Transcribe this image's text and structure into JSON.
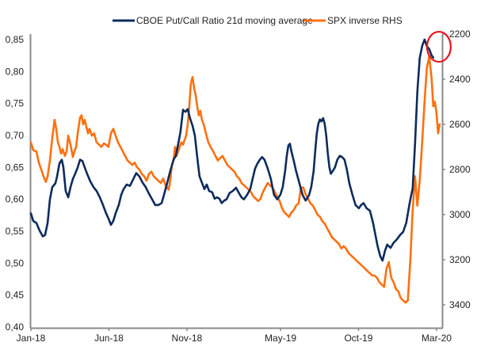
{
  "chart_data": {
    "type": "line",
    "title": "",
    "xlabel": "",
    "ylabel": "",
    "ylabel_right": "",
    "x_tick_labels": [
      "Jan-18",
      "Jun-18",
      "Nov-18",
      "May-19",
      "Oct-19",
      "Mar-20"
    ],
    "x_tick_months": [
      0,
      5,
      10,
      16,
      21,
      26
    ],
    "x_range_months": [
      0,
      27
    ],
    "y_left": {
      "ticks": [
        "0,85",
        "0,80",
        "0,75",
        "0,70",
        "0,65",
        "0,60",
        "0,55",
        "0,50",
        "0,45",
        "0,40"
      ],
      "tick_values": [
        0.85,
        0.8,
        0.75,
        0.7,
        0.65,
        0.6,
        0.55,
        0.5,
        0.45,
        0.4
      ],
      "range": [
        0.4,
        0.85
      ]
    },
    "y_right": {
      "ticks": [
        "2200",
        "2400",
        "2600",
        "2800",
        "3000",
        "3200",
        "3400"
      ],
      "tick_values": [
        2200,
        2400,
        2600,
        2800,
        3000,
        3200,
        3400
      ],
      "range": [
        2200,
        3500
      ],
      "inverted": true
    },
    "grid": false,
    "legend_position": "top",
    "series": [
      {
        "name": "CBOE Put/Call Ratio 21d moving average",
        "axis": "left",
        "color": "#0d2b5c",
        "x_months": [
          0,
          0.15,
          0.35,
          0.56,
          0.76,
          0.91,
          1.07,
          1.22,
          1.37,
          1.57,
          1.67,
          1.83,
          1.98,
          2.08,
          2.23,
          2.39,
          2.54,
          2.69,
          2.84,
          3.0,
          3.15,
          3.3,
          3.45,
          3.6,
          3.81,
          4.01,
          4.21,
          4.42,
          4.62,
          4.82,
          4.97,
          5.13,
          5.28,
          5.43,
          5.63,
          5.79,
          5.94,
          6.14,
          6.35,
          6.55,
          6.75,
          6.95,
          7.16,
          7.36,
          7.56,
          7.77,
          7.97,
          8.17,
          8.38,
          8.53,
          8.73,
          8.93,
          9.14,
          9.29,
          9.49,
          9.59,
          9.75,
          9.9,
          10.05,
          10.2,
          10.36,
          10.51,
          10.66,
          10.81,
          10.96,
          11.12,
          11.27,
          11.42,
          11.62,
          11.78,
          11.93,
          12.08,
          12.23,
          12.39,
          12.54,
          12.74,
          12.94,
          13.15,
          13.35,
          13.5,
          13.65,
          13.86,
          14.06,
          14.21,
          14.37,
          14.52,
          14.67,
          14.82,
          14.97,
          15.18,
          15.38,
          15.58,
          15.79,
          15.99,
          16.14,
          16.29,
          16.4,
          16.5,
          16.6,
          16.7,
          16.85,
          17.0,
          17.21,
          17.41,
          17.61,
          17.82,
          17.97,
          18.12,
          18.22,
          18.32,
          18.42,
          18.52,
          18.62,
          18.73,
          18.83,
          18.93,
          19.03,
          19.13,
          19.23,
          19.34,
          19.49,
          19.64,
          19.8,
          19.95,
          20.1,
          20.25,
          20.41,
          20.61,
          20.81,
          21.02,
          21.17,
          21.32,
          21.52,
          21.73,
          21.93,
          22.08,
          22.23,
          22.39,
          22.54,
          22.69,
          22.84,
          23.05,
          23.25,
          23.45,
          23.66,
          23.86,
          24.06,
          24.21,
          24.32,
          24.47,
          24.62,
          24.77,
          24.92,
          25.08,
          25.23,
          25.38,
          25.53,
          25.69,
          25.79
        ],
        "values": [
          0.578,
          0.566,
          0.563,
          0.551,
          0.542,
          0.544,
          0.563,
          0.6,
          0.619,
          0.625,
          0.635,
          0.656,
          0.662,
          0.65,
          0.613,
          0.603,
          0.619,
          0.632,
          0.64,
          0.65,
          0.662,
          0.66,
          0.65,
          0.64,
          0.628,
          0.619,
          0.613,
          0.603,
          0.591,
          0.578,
          0.57,
          0.56,
          0.566,
          0.578,
          0.591,
          0.607,
          0.616,
          0.623,
          0.621,
          0.631,
          0.641,
          0.636,
          0.626,
          0.619,
          0.609,
          0.6,
          0.591,
          0.591,
          0.594,
          0.607,
          0.625,
          0.644,
          0.662,
          0.668,
          0.693,
          0.706,
          0.74,
          0.737,
          0.741,
          0.727,
          0.715,
          0.7,
          0.666,
          0.636,
          0.626,
          0.616,
          0.623,
          0.613,
          0.611,
          0.601,
          0.603,
          0.601,
          0.594,
          0.598,
          0.6,
          0.61,
          0.613,
          0.618,
          0.609,
          0.603,
          0.6,
          0.607,
          0.616,
          0.632,
          0.648,
          0.656,
          0.662,
          0.666,
          0.662,
          0.648,
          0.632,
          0.607,
          0.6,
          0.607,
          0.619,
          0.644,
          0.668,
          0.684,
          0.687,
          0.675,
          0.66,
          0.644,
          0.625,
          0.607,
          0.598,
          0.606,
          0.619,
          0.644,
          0.675,
          0.702,
          0.718,
          0.725,
          0.722,
          0.727,
          0.718,
          0.7,
          0.672,
          0.65,
          0.64,
          0.644,
          0.65,
          0.662,
          0.668,
          0.666,
          0.662,
          0.647,
          0.625,
          0.607,
          0.591,
          0.586,
          0.591,
          0.594,
          0.586,
          0.582,
          0.563,
          0.544,
          0.526,
          0.511,
          0.504,
          0.519,
          0.529,
          0.524,
          0.532,
          0.537,
          0.544,
          0.549,
          0.563,
          0.585,
          0.6,
          0.617,
          0.687,
          0.768,
          0.821,
          0.84,
          0.85,
          0.84,
          0.835,
          0.825,
          0.822
        ]
      },
      {
        "name": "SPX inverse RHS",
        "axis": "right",
        "color": "#ff7010",
        "x_months": [
          0,
          0.15,
          0.35,
          0.51,
          0.66,
          0.81,
          0.96,
          1.07,
          1.22,
          1.37,
          1.52,
          1.62,
          1.73,
          1.83,
          1.93,
          2.03,
          2.18,
          2.29,
          2.39,
          2.54,
          2.69,
          2.79,
          2.9,
          3.0,
          3.15,
          3.25,
          3.35,
          3.45,
          3.55,
          3.66,
          3.76,
          3.91,
          4.06,
          4.21,
          4.37,
          4.52,
          4.67,
          4.82,
          4.97,
          5.13,
          5.28,
          5.43,
          5.58,
          5.74,
          5.89,
          6.04,
          6.19,
          6.35,
          6.5,
          6.65,
          6.8,
          6.95,
          7.11,
          7.26,
          7.41,
          7.56,
          7.72,
          7.87,
          8.02,
          8.17,
          8.33,
          8.48,
          8.63,
          8.73,
          8.83,
          8.93,
          9.04,
          9.14,
          9.24,
          9.34,
          9.44,
          9.54,
          9.64,
          9.75,
          9.85,
          9.95,
          10.05,
          10.15,
          10.25,
          10.36,
          10.46,
          10.56,
          10.66,
          10.76,
          10.86,
          10.96,
          11.07,
          11.22,
          11.37,
          11.52,
          11.68,
          11.83,
          11.98,
          12.13,
          12.28,
          12.44,
          12.59,
          12.74,
          12.89,
          13.05,
          13.2,
          13.35,
          13.5,
          13.65,
          13.81,
          13.96,
          14.11,
          14.26,
          14.42,
          14.57,
          14.72,
          14.87,
          15.03,
          15.18,
          15.33,
          15.48,
          15.63,
          15.79,
          15.94,
          16.09,
          16.24,
          16.4,
          16.55,
          16.7,
          16.85,
          17.0,
          17.16,
          17.31,
          17.46,
          17.61,
          17.77,
          17.92,
          18.07,
          18.22,
          18.37,
          18.53,
          18.68,
          18.83,
          18.98,
          19.14,
          19.29,
          19.44,
          19.59,
          19.74,
          19.9,
          20.05,
          20.2,
          20.35,
          20.51,
          20.66,
          20.81,
          20.96,
          21.12,
          21.27,
          21.42,
          21.57,
          21.73,
          21.88,
          22.03,
          22.18,
          22.34,
          22.49,
          22.64,
          22.79,
          22.94,
          23.1,
          23.25,
          23.4,
          23.55,
          23.71,
          23.86,
          24.01,
          24.16,
          24.32,
          24.47,
          24.62,
          24.77,
          24.92,
          25.08,
          25.23,
          25.38,
          25.53,
          25.69,
          25.79,
          25.89,
          26.0,
          26.1,
          26.2,
          26.3
        ],
        "values": [
          2680,
          2715,
          2720,
          2770,
          2800,
          2830,
          2855,
          2830,
          2760,
          2660,
          2580,
          2620,
          2680,
          2700,
          2730,
          2710,
          2740,
          2720,
          2650,
          2690,
          2745,
          2720,
          2700,
          2640,
          2570,
          2560,
          2600,
          2580,
          2610,
          2640,
          2620,
          2650,
          2640,
          2680,
          2690,
          2700,
          2685,
          2690,
          2700,
          2640,
          2620,
          2650,
          2680,
          2700,
          2720,
          2740,
          2760,
          2770,
          2780,
          2770,
          2790,
          2800,
          2820,
          2830,
          2850,
          2820,
          2810,
          2830,
          2840,
          2850,
          2860,
          2840,
          2870,
          2880,
          2890,
          2850,
          2780,
          2760,
          2700,
          2740,
          2720,
          2700,
          2680,
          2690,
          2670,
          2650,
          2600,
          2520,
          2420,
          2390,
          2440,
          2470,
          2520,
          2560,
          2540,
          2580,
          2600,
          2640,
          2680,
          2700,
          2720,
          2740,
          2760,
          2750,
          2740,
          2760,
          2780,
          2790,
          2800,
          2810,
          2830,
          2840,
          2860,
          2870,
          2880,
          2890,
          2900,
          2920,
          2930,
          2940,
          2930,
          2900,
          2880,
          2860,
          2870,
          2880,
          2900,
          2920,
          2940,
          2970,
          2990,
          3000,
          3010,
          2990,
          2980,
          2960,
          2950,
          2880,
          2880,
          2910,
          2930,
          2950,
          2960,
          2980,
          3000,
          3010,
          3030,
          3040,
          3060,
          3080,
          3100,
          3110,
          3120,
          3130,
          3150,
          3140,
          3150,
          3170,
          3180,
          3190,
          3200,
          3210,
          3220,
          3230,
          3240,
          3250,
          3260,
          3270,
          3270,
          3280,
          3300,
          3310,
          3320,
          3240,
          3210,
          3280,
          3300,
          3330,
          3340,
          3370,
          3380,
          3390,
          3380,
          3200,
          2980,
          2830,
          2960,
          2850,
          2680,
          2500,
          2350,
          2300,
          2400,
          2520,
          2500,
          2550,
          2640,
          2600
        ]
      }
    ],
    "annotations": [
      {
        "type": "circle",
        "label": "peak highlight",
        "color": "#e8141c",
        "x_months": 26.1,
        "y_value_left": 0.84
      }
    ]
  }
}
